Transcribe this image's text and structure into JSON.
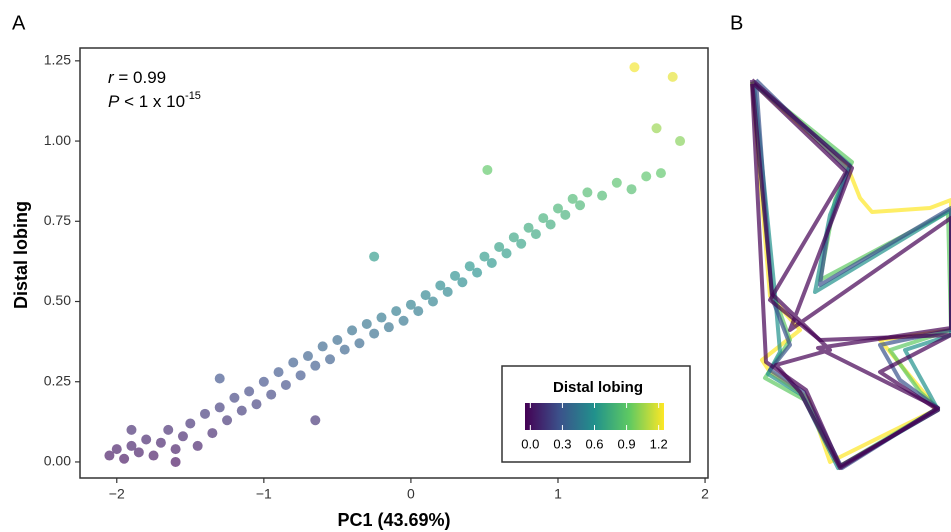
{
  "panels": [
    "A",
    "B"
  ],
  "chart_data": {
    "type": "scatter",
    "x_label": "PC1 (43.69%)",
    "y_label": "Distal lobing",
    "annotations": {
      "r": {
        "symbol": "r",
        "text": " = 0.99"
      },
      "p": {
        "symbol": "P",
        "text": " < 1 x 10",
        "exponent": "-15"
      }
    },
    "xlim": [
      -2.25,
      2.02
    ],
    "ylim": [
      -0.05,
      1.29
    ],
    "xticks": [
      {
        "value": -2,
        "label": "−2"
      },
      {
        "value": -1,
        "label": "−1"
      },
      0,
      1,
      2
    ],
    "yticks": [
      {
        "value": 0,
        "label": "0.00"
      },
      {
        "value": 0.25,
        "label": "0.25"
      },
      {
        "value": 0.5,
        "label": "0.50"
      },
      {
        "value": 0.75,
        "label": "0.75"
      },
      {
        "value": 1,
        "label": "1.00"
      },
      {
        "value": 1.25,
        "label": "1.25"
      }
    ],
    "x": [
      -2.05,
      -2.0,
      -1.95,
      -1.9,
      -1.85,
      -1.8,
      -1.75,
      -1.7,
      -1.65,
      -1.6,
      -1.55,
      -1.5,
      -1.45,
      -1.4,
      -1.35,
      -1.3,
      -1.25,
      -1.2,
      -1.15,
      -1.1,
      -1.05,
      -1.0,
      -0.95,
      -0.9,
      -0.85,
      -0.8,
      -0.75,
      -0.7,
      -0.65,
      -0.6,
      -0.55,
      -0.5,
      -0.45,
      -0.4,
      -0.35,
      -0.3,
      -0.25,
      -0.2,
      -0.15,
      -0.1,
      -0.05,
      0.0,
      0.05,
      0.1,
      0.15,
      0.2,
      0.25,
      0.3,
      0.35,
      0.4,
      0.45,
      0.5,
      0.55,
      0.6,
      0.65,
      0.7,
      0.75,
      0.8,
      0.85,
      0.9,
      0.95,
      1.0,
      1.05,
      1.1,
      1.15,
      1.2,
      1.3,
      1.4,
      1.5,
      1.6,
      1.7,
      -1.3,
      -0.25,
      0.52,
      1.52,
      1.78,
      1.67,
      1.83,
      -0.65,
      -1.6,
      -1.9
    ],
    "values": [
      0.02,
      0.04,
      0.01,
      0.05,
      0.03,
      0.07,
      0.02,
      0.06,
      0.1,
      0.04,
      0.08,
      0.12,
      0.05,
      0.15,
      0.09,
      0.17,
      0.13,
      0.2,
      0.16,
      0.22,
      0.18,
      0.25,
      0.21,
      0.28,
      0.24,
      0.31,
      0.27,
      0.33,
      0.3,
      0.36,
      0.32,
      0.38,
      0.35,
      0.41,
      0.37,
      0.43,
      0.4,
      0.45,
      0.42,
      0.47,
      0.44,
      0.49,
      0.47,
      0.52,
      0.5,
      0.55,
      0.53,
      0.58,
      0.56,
      0.61,
      0.59,
      0.64,
      0.62,
      0.67,
      0.65,
      0.7,
      0.68,
      0.73,
      0.71,
      0.76,
      0.74,
      0.79,
      0.77,
      0.82,
      0.8,
      0.84,
      0.83,
      0.87,
      0.85,
      0.89,
      0.9,
      0.26,
      0.64,
      0.91,
      1.23,
      1.2,
      1.04,
      1.0,
      0.13,
      0.0,
      0.1
    ],
    "colormap": [
      "#440154",
      "#3b528b",
      "#21918c",
      "#5ec962",
      "#fde725"
    ],
    "colorbar": {
      "title": "Distal lobing",
      "lim": [
        -0.05,
        1.25
      ],
      "ticks": [
        {
          "value": 0,
          "label": "0.0"
        },
        {
          "value": 0.3,
          "label": "0.3"
        },
        {
          "value": 0.6,
          "label": "0.6"
        },
        {
          "value": 0.9,
          "label": "0.9"
        },
        {
          "value": 1.2,
          "label": "1.2"
        }
      ]
    }
  }
}
